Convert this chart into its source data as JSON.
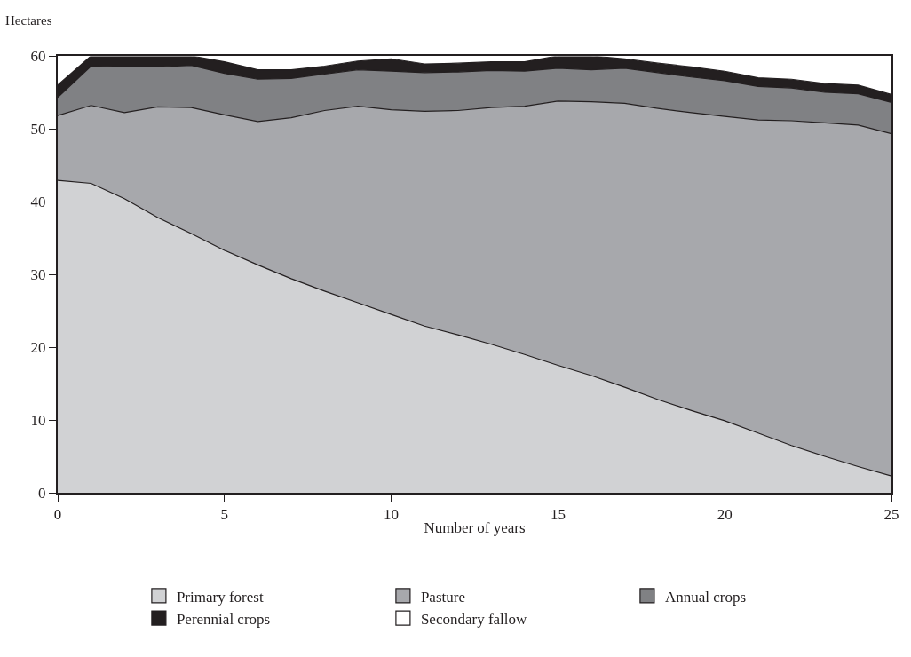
{
  "chart_data": {
    "type": "area",
    "stacked": true,
    "ylabel": "Hectares",
    "xlabel": "Number of years",
    "x": [
      0,
      1,
      2,
      3,
      4,
      5,
      6,
      7,
      8,
      9,
      10,
      11,
      12,
      13,
      14,
      15,
      16,
      17,
      18,
      19,
      20,
      21,
      22,
      23,
      24,
      25
    ],
    "xlim": [
      0,
      25
    ],
    "xticks": [
      0,
      5,
      10,
      15,
      20,
      25
    ],
    "ylim": [
      0,
      60
    ],
    "yticks": [
      0,
      10,
      20,
      30,
      40,
      50,
      60
    ],
    "legend": "bottom",
    "series": [
      {
        "name": "Primary forest",
        "color": "#d1d2d4",
        "values": [
          42.9,
          42.5,
          40.4,
          37.8,
          35.6,
          33.3,
          31.3,
          29.4,
          27.7,
          26.1,
          24.5,
          22.9,
          21.7,
          20.4,
          19.0,
          17.5,
          16.1,
          14.5,
          12.8,
          11.3,
          9.9,
          8.2,
          6.5,
          5.0,
          3.6,
          2.3
        ]
      },
      {
        "name": "Pasture",
        "color": "#a7a8ac",
        "values": [
          8.9,
          10.7,
          11.8,
          15.2,
          17.3,
          18.6,
          19.7,
          22.1,
          24.8,
          27.0,
          28.1,
          29.5,
          30.8,
          32.5,
          34.1,
          36.3,
          37.6,
          39.0,
          40.0,
          40.9,
          41.8,
          43.0,
          44.6,
          45.8,
          46.9,
          47.0
        ]
      },
      {
        "name": "Annual crops",
        "color": "#808184",
        "values": [
          2.5,
          5.4,
          6.3,
          5.5,
          5.8,
          5.7,
          5.8,
          5.4,
          5.0,
          5.0,
          5.3,
          5.3,
          5.3,
          5.1,
          4.8,
          4.5,
          4.4,
          4.8,
          4.9,
          4.9,
          4.9,
          4.6,
          4.5,
          4.2,
          4.3,
          4.3
        ]
      },
      {
        "name": "Perennial crops",
        "color": "#231f20",
        "values": [
          1.7,
          1.4,
          1.5,
          1.5,
          1.3,
          1.6,
          1.3,
          1.2,
          1.1,
          1.2,
          1.7,
          1.2,
          1.2,
          1.2,
          1.3,
          1.7,
          1.9,
          1.3,
          1.3,
          1.4,
          1.3,
          1.2,
          1.2,
          1.2,
          1.2,
          1.1
        ]
      },
      {
        "name": "Secondary fallow",
        "color": "#ffffff",
        "values": [
          4.0,
          0,
          0,
          0,
          0,
          0.8,
          1.9,
          1.9,
          1.4,
          0.7,
          0.4,
          1.1,
          1.0,
          0.8,
          0.8,
          0,
          0,
          0.4,
          1.0,
          1.5,
          2.1,
          3.0,
          3.2,
          3.8,
          4.0,
          5.3
        ]
      }
    ]
  }
}
